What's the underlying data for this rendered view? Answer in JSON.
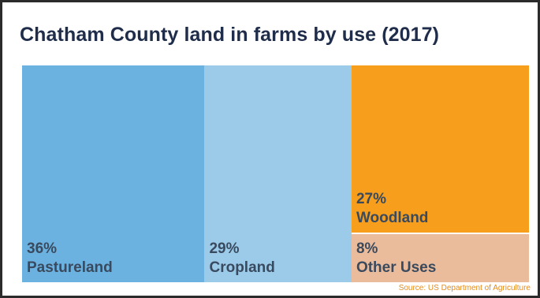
{
  "chart_data": {
    "type": "treemap",
    "title": "Chatham County land in farms by use (2017)",
    "unit": "%",
    "items": [
      {
        "name": "Pastureland",
        "value": 36,
        "label": "36%",
        "color": "#6cb2e0"
      },
      {
        "name": "Cropland",
        "value": 29,
        "label": "29%",
        "color": "#9ccbea"
      },
      {
        "name": "Woodland",
        "value": 27,
        "label": "27%",
        "color": "#f79e1c"
      },
      {
        "name": "Other Uses",
        "value": 8,
        "label": "8%",
        "color": "#ebbc9b"
      }
    ],
    "source": "Source: US Department of Agriculture"
  }
}
